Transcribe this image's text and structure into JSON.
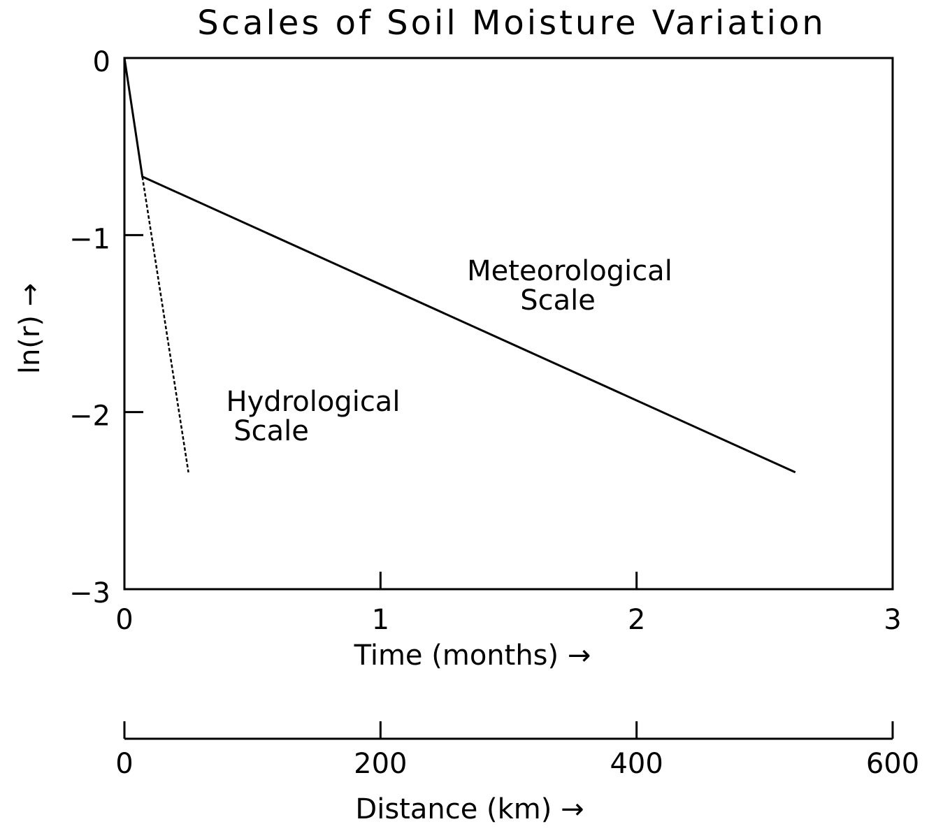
{
  "chart_data": {
    "type": "line",
    "title": "Scales of Soil Moisture Variation",
    "xlabel": "Time (months) →",
    "ylabel": "ln(r) →",
    "x2label": "Distance (km) →",
    "xlim": [
      0,
      3
    ],
    "xticks": [
      0,
      1,
      2,
      3
    ],
    "ylim": [
      -3,
      0
    ],
    "yticks": [
      0,
      {
        "value": -1,
        "label": "−1"
      },
      {
        "value": -2,
        "label": "−2"
      },
      {
        "value": -3,
        "label": "−3"
      }
    ],
    "x2lim": [
      0,
      600
    ],
    "x2ticks": [
      0,
      200,
      400,
      600
    ],
    "series": [
      {
        "color": "#000000",
        "style": "solid",
        "x": [
          0,
          0.07,
          2.62
        ],
        "values": [
          0,
          -0.67,
          -2.34
        ]
      },
      {
        "color": "#000000",
        "style": "dashed",
        "x": [
          0.07,
          0.25
        ],
        "values": [
          -0.67,
          -2.34
        ]
      }
    ],
    "annotations": [
      "Meteorological",
      "Scale",
      "Hydrological",
      "Scale"
    ]
  }
}
